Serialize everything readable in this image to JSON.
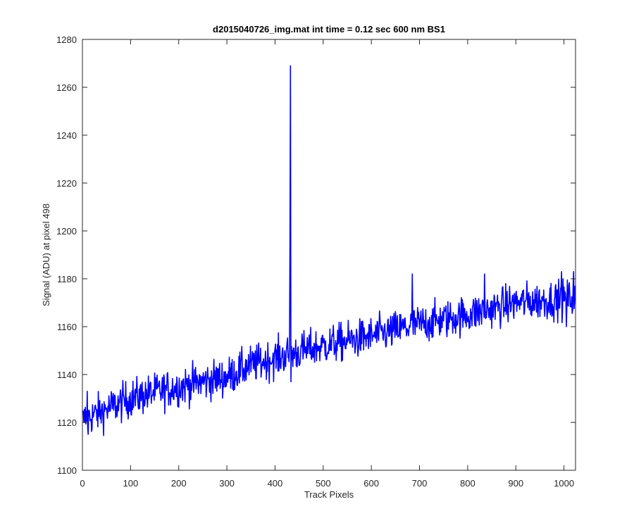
{
  "chart_data": {
    "type": "line",
    "title": "d2015040726_img.mat int time = 0.12 sec  600 nm BS1",
    "xlabel": "Track Pixels",
    "ylabel": "Signal (ADU) at pixel 498",
    "xlim": [
      0,
      1024
    ],
    "ylim": [
      1100,
      1280
    ],
    "xticks": [
      0,
      100,
      200,
      300,
      400,
      500,
      600,
      700,
      800,
      900,
      1000
    ],
    "yticks": [
      1100,
      1120,
      1140,
      1160,
      1180,
      1200,
      1220,
      1240,
      1260,
      1280
    ],
    "grid": false,
    "line_color": "#0000ff",
    "series": [
      {
        "x_start": 1,
        "x_end": 1024,
        "trend": [
          [
            1,
            1121
          ],
          [
            100,
            1130
          ],
          [
            200,
            1135
          ],
          [
            300,
            1139
          ],
          [
            350,
            1144
          ],
          [
            420,
            1148
          ],
          [
            500,
            1152
          ],
          [
            600,
            1156
          ],
          [
            700,
            1161
          ],
          [
            800,
            1165
          ],
          [
            900,
            1170
          ],
          [
            1024,
            1172
          ]
        ],
        "noise_amplitude": 4,
        "spikes": [
          [
            3,
            1120
          ],
          [
            10,
            1133
          ],
          [
            12,
            1115
          ],
          [
            431,
            1193
          ],
          [
            432,
            1269
          ],
          [
            433,
            1137
          ],
          [
            685,
            1182
          ],
          [
            835,
            1182
          ],
          [
            995,
            1183
          ],
          [
            1005,
            1160
          ],
          [
            1020,
            1183
          ]
        ]
      }
    ]
  }
}
